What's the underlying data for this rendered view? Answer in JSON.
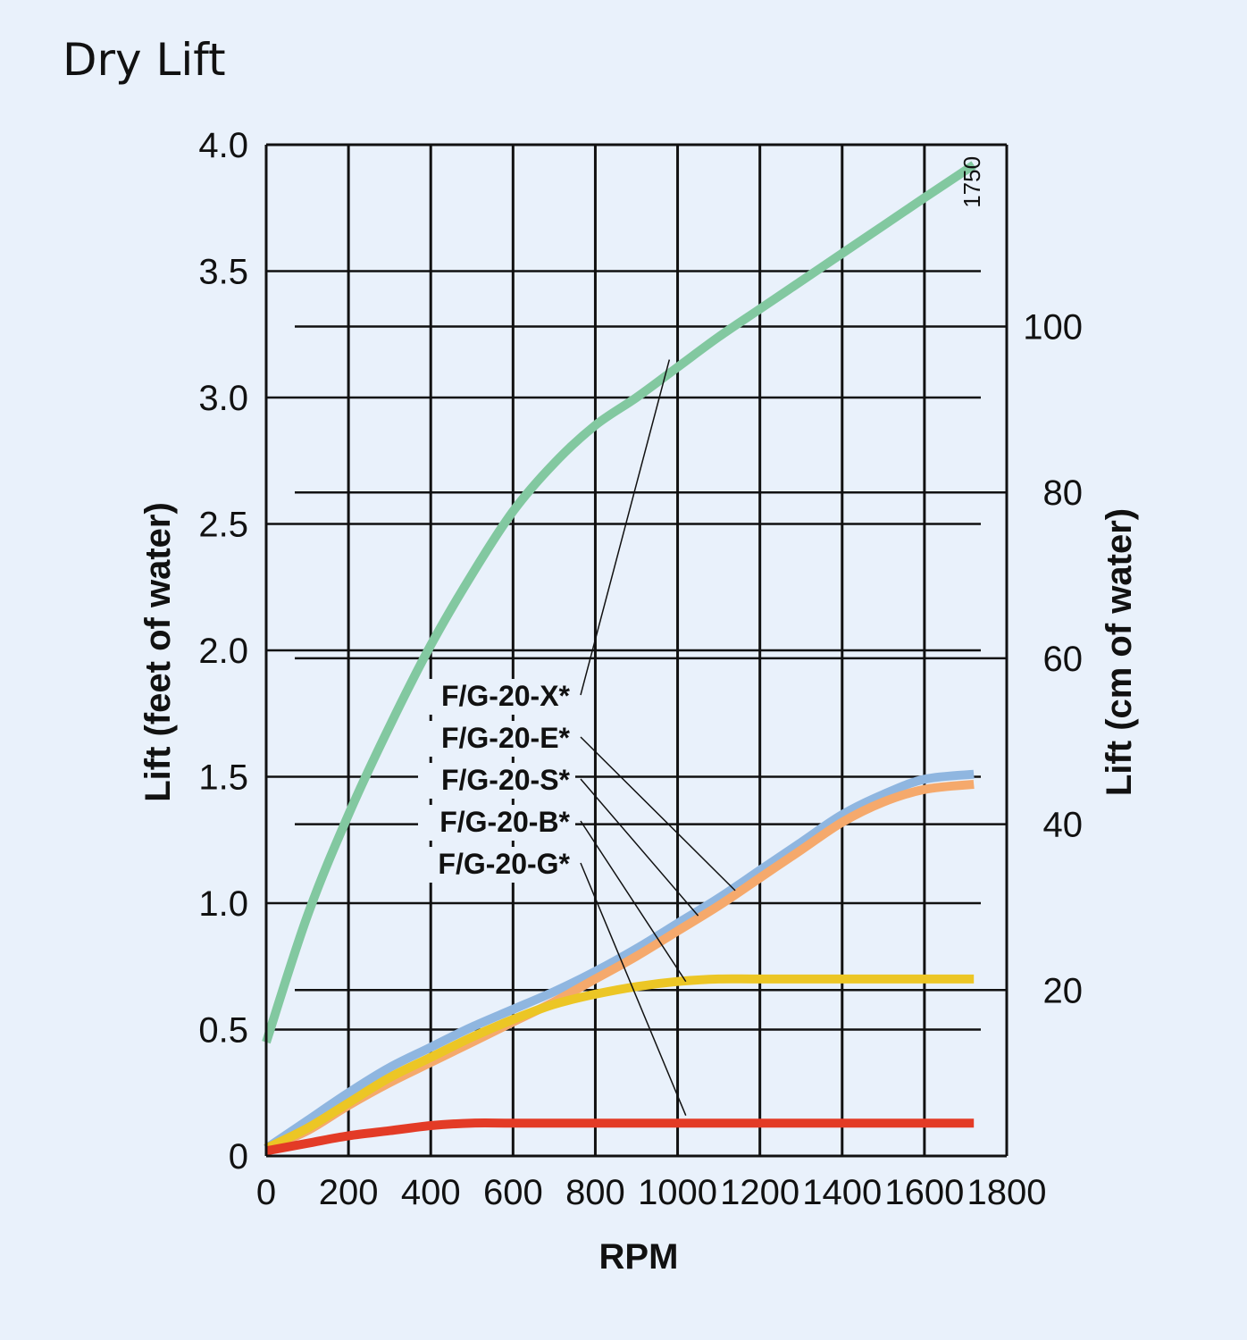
{
  "chart_data": {
    "type": "line",
    "title": "Dry Lift",
    "xlabel": "RPM",
    "ylabel": "Lift (feet of water)",
    "y2label": "Lift (cm of water)",
    "xlim": [
      0,
      1800
    ],
    "ylim": [
      0,
      4.0
    ],
    "y2lim": [
      0,
      121.92
    ],
    "x_ticks": [
      "0",
      "200",
      "400",
      "600",
      "800",
      "1000",
      "1200",
      "1400",
      "1600",
      "1800"
    ],
    "x_tick_values": [
      0,
      200,
      400,
      600,
      800,
      1000,
      1200,
      1400,
      1600,
      1800
    ],
    "y_ticks": [
      "0",
      "0.5",
      "1.0",
      "1.5",
      "2.0",
      "2.5",
      "3.0",
      "3.5",
      "4.0"
    ],
    "y_tick_values": [
      0,
      0.5,
      1.0,
      1.5,
      2.0,
      2.5,
      3.0,
      3.5,
      4.0
    ],
    "y2_ticks": [
      "20",
      "40",
      "60",
      "80",
      "100"
    ],
    "y2_tick_values": [
      20,
      40,
      60,
      80,
      100
    ],
    "annotation": "1750",
    "annotation_x": 1730,
    "annotation_y": 3.75,
    "grid": true,
    "series": [
      {
        "name": "F/G-20-X*",
        "color": "#82c8a0",
        "x": [
          0,
          100,
          200,
          300,
          400,
          500,
          600,
          700,
          800,
          900,
          1000,
          1100,
          1200,
          1300,
          1400,
          1500,
          1600,
          1720
        ],
        "y": [
          0.45,
          0.95,
          1.35,
          1.7,
          2.02,
          2.3,
          2.55,
          2.74,
          2.89,
          3.0,
          3.12,
          3.24,
          3.35,
          3.46,
          3.57,
          3.68,
          3.79,
          3.92
        ]
      },
      {
        "name": "F/G-20-E*",
        "color": "#8fb6e0",
        "x": [
          0,
          100,
          200,
          300,
          400,
          500,
          600,
          700,
          800,
          900,
          1000,
          1100,
          1200,
          1300,
          1400,
          1500,
          1600,
          1720
        ],
        "y": [
          0.03,
          0.14,
          0.25,
          0.35,
          0.43,
          0.51,
          0.58,
          0.65,
          0.73,
          0.82,
          0.92,
          1.02,
          1.13,
          1.24,
          1.35,
          1.43,
          1.49,
          1.51
        ]
      },
      {
        "name": "F/G-20-S*",
        "color": "#f5a96c",
        "x": [
          0,
          100,
          200,
          300,
          400,
          500,
          600,
          700,
          800,
          900,
          1000,
          1100,
          1200,
          1300,
          1400,
          1500,
          1600,
          1720
        ],
        "y": [
          0.03,
          0.1,
          0.2,
          0.29,
          0.37,
          0.45,
          0.53,
          0.61,
          0.7,
          0.79,
          0.89,
          0.99,
          1.1,
          1.21,
          1.32,
          1.4,
          1.45,
          1.47
        ]
      },
      {
        "name": "F/G-20-B*",
        "color": "#ecc625",
        "x": [
          0,
          100,
          200,
          300,
          400,
          500,
          600,
          700,
          800,
          900,
          1000,
          1100,
          1200,
          1400,
          1600,
          1720
        ],
        "y": [
          0.03,
          0.11,
          0.21,
          0.31,
          0.39,
          0.47,
          0.54,
          0.6,
          0.64,
          0.67,
          0.69,
          0.7,
          0.7,
          0.7,
          0.7,
          0.7
        ]
      },
      {
        "name": "F/G-20-G*",
        "color": "#e33b26",
        "x": [
          0,
          100,
          200,
          300,
          400,
          500,
          600,
          800,
          1000,
          1200,
          1400,
          1600,
          1720
        ],
        "y": [
          0.02,
          0.05,
          0.08,
          0.1,
          0.12,
          0.13,
          0.13,
          0.13,
          0.13,
          0.13,
          0.13,
          0.13,
          0.13
        ]
      }
    ]
  }
}
